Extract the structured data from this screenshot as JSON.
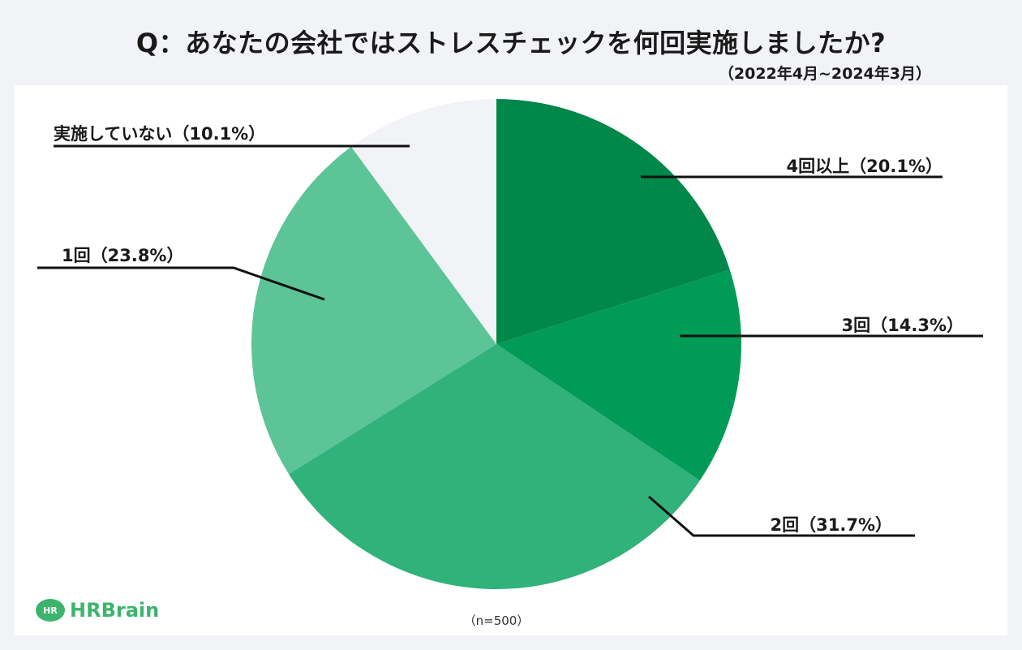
{
  "title": "Q：あなたの会社ではストレスチェックを何回実施しましたか?",
  "period": "（2022年4月~2024年3月）",
  "brand": {
    "mark": "HR",
    "name": "HRBrain",
    "color": "#3cb46e"
  },
  "chart_data": {
    "type": "pie",
    "sample_note": "（n=500）",
    "start": "12 o'clock",
    "direction": "clockwise",
    "slices": [
      {
        "label": "4回以上",
        "value": 20.1,
        "display": "4回以上（20.1%）",
        "color": "#00874a"
      },
      {
        "label": "3回",
        "value": 14.3,
        "display": "3回（14.3%）",
        "color": "#009b57"
      },
      {
        "label": "2回",
        "value": 31.7,
        "display": "2回（31.7%）",
        "color": "#30b27a"
      },
      {
        "label": "1回",
        "value": 23.8,
        "display": "1回（23.8%）",
        "color": "#5cc497"
      },
      {
        "label": "実施していない",
        "value": 10.1,
        "display": "実施していない（10.1%）",
        "color": "#f2f3f7"
      }
    ]
  }
}
